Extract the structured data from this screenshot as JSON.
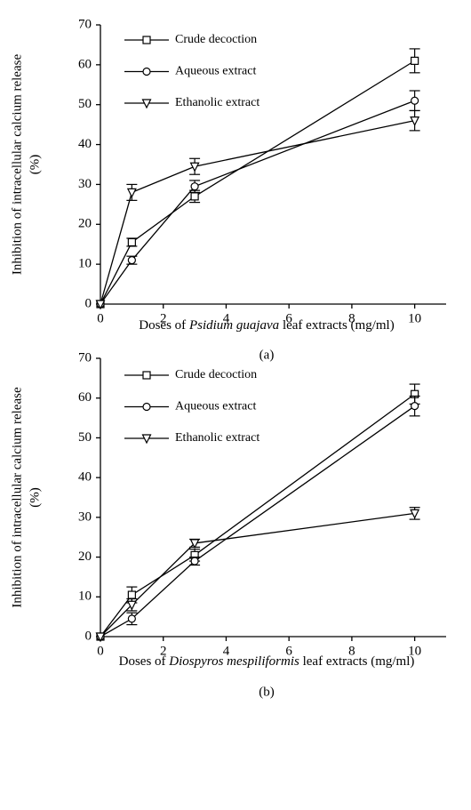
{
  "chart_data": [
    {
      "type": "line",
      "y_label": [
        "Inhibition of intracellular calcium release",
        "(%)"
      ],
      "x_label": [
        "Doses of ",
        "Psidium guajava",
        " leaf extracts (mg/ml)"
      ],
      "caption": "(a)",
      "x": [
        0,
        1,
        3,
        10
      ],
      "xlim": [
        0,
        11
      ],
      "xticks": [
        0,
        2,
        4,
        6,
        8,
        10
      ],
      "ylim": [
        0,
        70
      ],
      "yticks": [
        0,
        10,
        20,
        30,
        40,
        50,
        60,
        70
      ],
      "legend": "top-left",
      "series": [
        {
          "name": "Crude decoction",
          "color": "#000000",
          "marker": "square",
          "values": [
            0,
            15.5,
            27,
            61
          ],
          "errors": [
            0,
            1,
            1.5,
            3
          ]
        },
        {
          "name": "Aqueous extract",
          "color": "#000000",
          "marker": "circle",
          "values": [
            0,
            11,
            29.5,
            51
          ],
          "errors": [
            0,
            1,
            1.5,
            2.5
          ]
        },
        {
          "name": "Ethanolic extract",
          "color": "#000000",
          "marker": "triangle-down",
          "values": [
            0,
            28,
            34.5,
            46
          ],
          "errors": [
            0,
            2,
            2,
            2.5
          ]
        }
      ]
    },
    {
      "type": "line",
      "y_label": [
        "Inhibition of intracellular calcium release",
        "(%)"
      ],
      "x_label": [
        "Doses of ",
        "Diospyros mespiliformis",
        " leaf extracts (mg/ml)"
      ],
      "caption": "(b)",
      "x": [
        0,
        1,
        3,
        10
      ],
      "xlim": [
        0,
        11
      ],
      "xticks": [
        0,
        2,
        4,
        6,
        8,
        10
      ],
      "ylim": [
        0,
        70
      ],
      "yticks": [
        0,
        10,
        20,
        30,
        40,
        50,
        60,
        70
      ],
      "legend": "top-left",
      "series": [
        {
          "name": "Crude decoction",
          "color": "#000000",
          "marker": "square",
          "values": [
            0,
            10.5,
            20.5,
            61
          ],
          "errors": [
            0,
            2,
            1.5,
            2.5
          ]
        },
        {
          "name": "Aqueous extract",
          "color": "#000000",
          "marker": "circle",
          "values": [
            0,
            4.5,
            19,
            58
          ],
          "errors": [
            0,
            1.5,
            1,
            2.5
          ]
        },
        {
          "name": "Ethanolic extract",
          "color": "#000000",
          "marker": "triangle-down",
          "values": [
            0,
            8,
            23.5,
            31
          ],
          "errors": [
            0,
            1.5,
            1,
            1.5
          ]
        }
      ]
    }
  ]
}
